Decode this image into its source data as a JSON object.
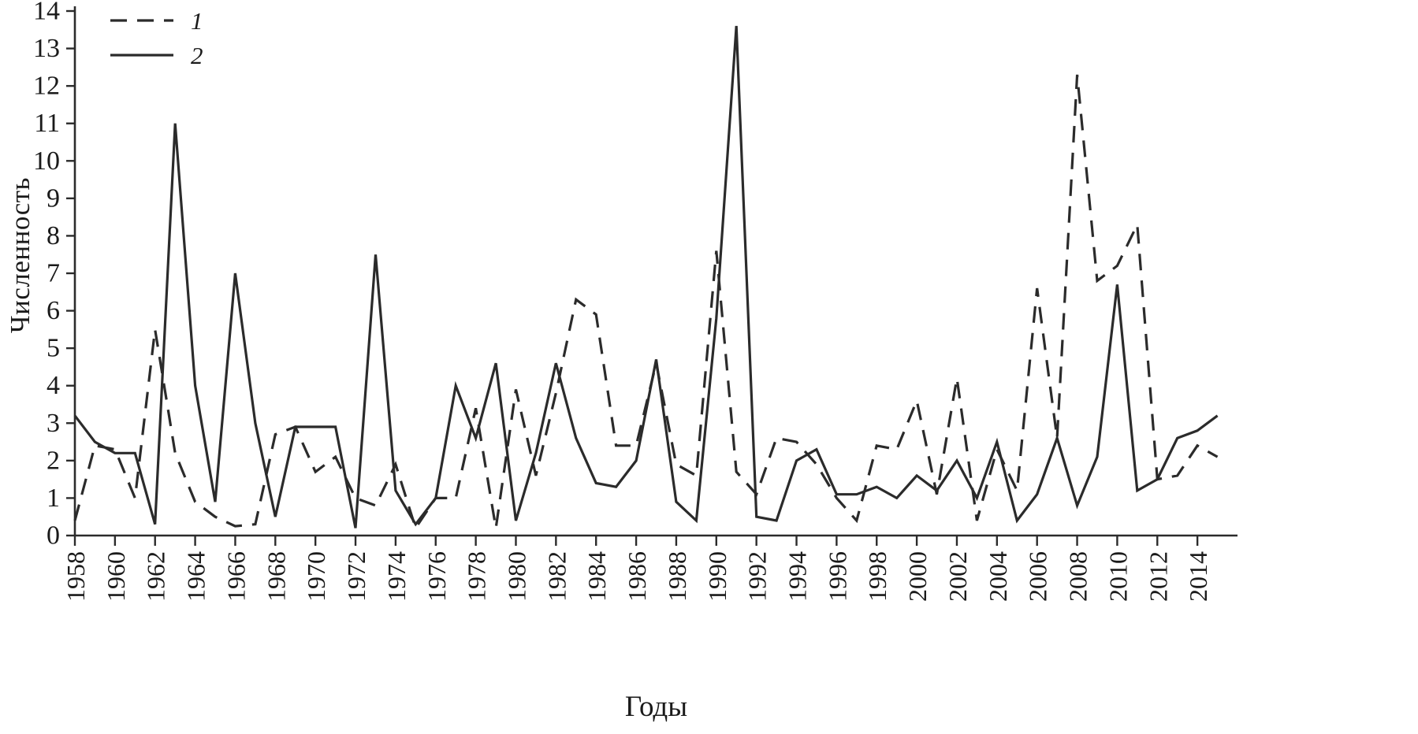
{
  "figure": {
    "ylabel": "Численность",
    "xlabel": "Годы",
    "background": "#ffffff",
    "line_color": "#2b2b2b",
    "text_color": "#1a1a1a",
    "legend": [
      {
        "label": "1",
        "style": "dashed"
      },
      {
        "label": "2",
        "style": "solid"
      }
    ]
  },
  "chart_data": {
    "type": "line",
    "title": "",
    "xlabel": "Годы",
    "ylabel": "Численность",
    "xlim": [
      1958,
      2016
    ],
    "ylim": [
      0,
      14
    ],
    "grid": false,
    "legend_position": "top-left",
    "x_ticks": [
      1958,
      1960,
      1962,
      1964,
      1966,
      1968,
      1970,
      1972,
      1974,
      1976,
      1978,
      1980,
      1982,
      1984,
      1986,
      1988,
      1990,
      1992,
      1994,
      1996,
      1998,
      2000,
      2002,
      2004,
      2006,
      2008,
      2010,
      2012,
      2014
    ],
    "y_ticks": [
      0,
      1,
      2,
      3,
      4,
      5,
      6,
      7,
      8,
      9,
      10,
      11,
      12,
      13,
      14
    ],
    "x": [
      1958,
      1959,
      1960,
      1961,
      1962,
      1963,
      1964,
      1965,
      1966,
      1967,
      1968,
      1969,
      1970,
      1971,
      1972,
      1973,
      1974,
      1975,
      1976,
      1977,
      1978,
      1979,
      1980,
      1981,
      1982,
      1983,
      1984,
      1985,
      1986,
      1987,
      1988,
      1989,
      1990,
      1991,
      1992,
      1993,
      1994,
      1995,
      1996,
      1997,
      1998,
      1999,
      2000,
      2001,
      2002,
      2003,
      2004,
      2005,
      2006,
      2007,
      2008,
      2009,
      2010,
      2011,
      2012,
      2013,
      2014,
      2015
    ],
    "series": [
      {
        "name": "1",
        "style": "dashed",
        "values": [
          0.4,
          2.4,
          2.3,
          1.0,
          5.5,
          2.2,
          0.9,
          0.5,
          0.25,
          0.3,
          2.7,
          2.9,
          1.7,
          2.1,
          1.0,
          0.8,
          1.9,
          0.2,
          1.0,
          1.0,
          3.4,
          0.2,
          3.9,
          1.6,
          3.8,
          6.3,
          5.9,
          2.4,
          2.4,
          4.6,
          1.9,
          1.6,
          7.6,
          1.7,
          1.1,
          2.6,
          2.5,
          1.9,
          1.0,
          0.4,
          2.4,
          2.3,
          3.6,
          1.1,
          4.2,
          0.4,
          2.3,
          1.2,
          6.6,
          2.6,
          12.3,
          6.8,
          7.2,
          8.3,
          1.5,
          1.6,
          2.4,
          2.1
        ]
      },
      {
        "name": "2",
        "style": "solid",
        "values": [
          3.2,
          2.5,
          2.2,
          2.2,
          0.3,
          11.0,
          4.0,
          0.9,
          7.0,
          3.0,
          0.5,
          2.9,
          2.9,
          2.9,
          0.2,
          7.5,
          1.2,
          0.3,
          1.0,
          4.0,
          2.6,
          4.6,
          0.4,
          2.2,
          4.6,
          2.6,
          1.4,
          1.3,
          2.0,
          4.7,
          0.9,
          0.4,
          5.8,
          13.6,
          0.5,
          0.4,
          2.0,
          2.3,
          1.1,
          1.1,
          1.3,
          1.0,
          1.6,
          1.2,
          2.0,
          1.0,
          2.5,
          0.4,
          1.1,
          2.6,
          0.8,
          2.1,
          6.7,
          1.2,
          1.5,
          2.6,
          2.8,
          3.2
        ]
      }
    ]
  }
}
